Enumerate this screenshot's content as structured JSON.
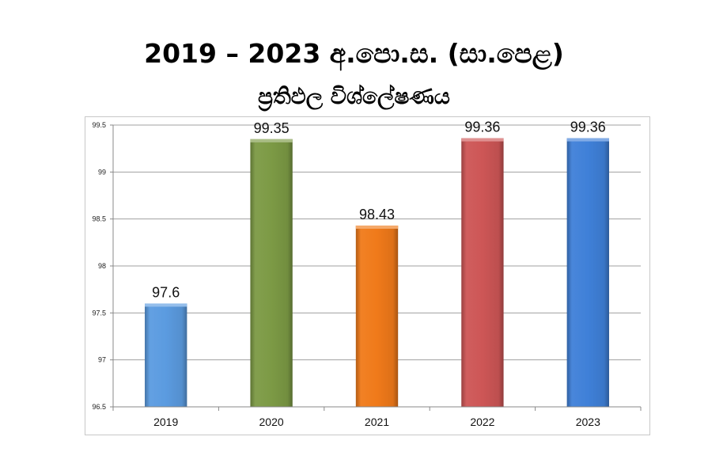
{
  "title": {
    "line1": "2019 – 2023 අ.පො.ස. (සා.පෙළ)",
    "line2": "ප්‍රතිඵල විශ්ලේෂණය"
  },
  "chart_data": {
    "type": "bar",
    "title": "2019 – 2023 අ.පො.ස. (සා.පෙළ) ප්‍රතිඵල විශ්ලේෂණය",
    "xlabel": "",
    "ylabel": "",
    "categories": [
      "2019",
      "2020",
      "2021",
      "2022",
      "2023"
    ],
    "values": [
      97.6,
      99.35,
      98.43,
      99.36,
      99.36
    ],
    "data_labels": [
      "97.6",
      "99.35",
      "98.43",
      "99.36",
      "99.36"
    ],
    "colors": [
      "#5b9be0",
      "#7c9a45",
      "#f07a1a",
      "#cd5656",
      "#3f80d8"
    ],
    "ylim": [
      96.5,
      99.5
    ],
    "yticks": [
      96.5,
      97,
      97.5,
      98,
      98.5,
      99,
      99.5
    ],
    "ytick_labels": [
      "96.5",
      "97",
      "97.5",
      "98",
      "98.5",
      "99",
      "99.5"
    ],
    "grid": true,
    "legend": "none"
  }
}
